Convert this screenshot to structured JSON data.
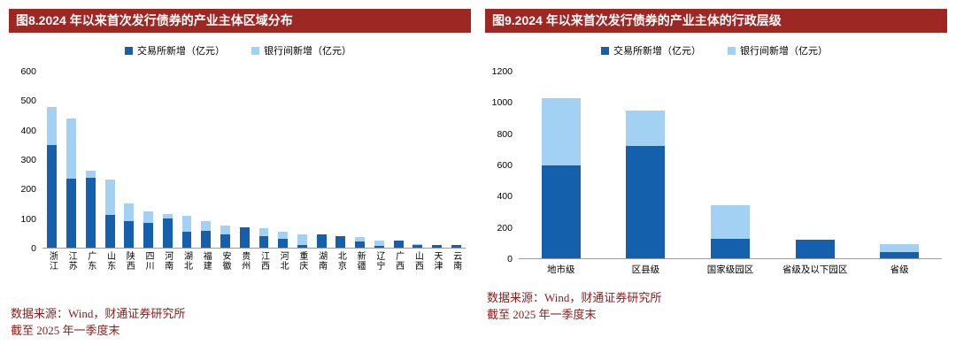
{
  "colors": {
    "title_bar_bg": "#9c2723",
    "series_exchange": "#1560ac",
    "series_interbank": "#a3d1f4",
    "source_text": "#8b1a17",
    "axis_line": "#9a9a9a"
  },
  "chart_data": [
    {
      "type": "bar",
      "stacked": true,
      "title": "图8.2024 年以来首次发行债券的产业主体区域分布",
      "legend": [
        "交易所新增（亿元）",
        "银行间新增（亿元）"
      ],
      "legend_position": "top",
      "grid": false,
      "ylim": [
        0,
        600
      ],
      "yticks": [
        0,
        100,
        200,
        300,
        400,
        500,
        600
      ],
      "categories": [
        "浙江",
        "江苏",
        "广东",
        "山东",
        "陕西",
        "四川",
        "河南",
        "湖北",
        "福建",
        "安徽",
        "贵州",
        "江西",
        "河北",
        "重庆",
        "湖南",
        "北京",
        "新疆",
        "辽宁",
        "广西",
        "山西",
        "天津",
        "云南"
      ],
      "series": [
        {
          "name": "交易所新增（亿元）",
          "values": [
            350,
            235,
            238,
            112,
            90,
            85,
            100,
            55,
            57,
            45,
            70,
            40,
            30,
            10,
            45,
            40,
            20,
            5,
            25,
            10,
            10,
            8
          ]
        },
        {
          "name": "银行间新增（亿元）",
          "values": [
            130,
            205,
            25,
            120,
            60,
            38,
            15,
            55,
            33,
            30,
            0,
            25,
            25,
            35,
            0,
            0,
            15,
            20,
            0,
            3,
            0,
            0
          ]
        }
      ],
      "source_line1": "数据来源：Wind，财通证券研究所",
      "source_line2": "截至 2025 年一季度末"
    },
    {
      "type": "bar",
      "stacked": true,
      "title": "图9.2024 年以来首次发行债券的产业主体的行政层级",
      "legend": [
        "交易所新增（亿元）",
        "银行间新增（亿元）"
      ],
      "legend_position": "top",
      "grid": false,
      "ylim": [
        0,
        1200
      ],
      "yticks": [
        0,
        200,
        400,
        600,
        800,
        1000,
        1200
      ],
      "categories": [
        "地市级",
        "区县级",
        "国家级园区",
        "省级及以下园区",
        "省级"
      ],
      "series": [
        {
          "name": "交易所新增（亿元）",
          "values": [
            600,
            720,
            125,
            120,
            40
          ]
        },
        {
          "name": "银行间新增（亿元）",
          "values": [
            430,
            230,
            215,
            0,
            50
          ]
        }
      ],
      "source_line1": "数据来源：Wind，财通证券研究所",
      "source_line2": "截至 2025 年一季度末"
    }
  ]
}
